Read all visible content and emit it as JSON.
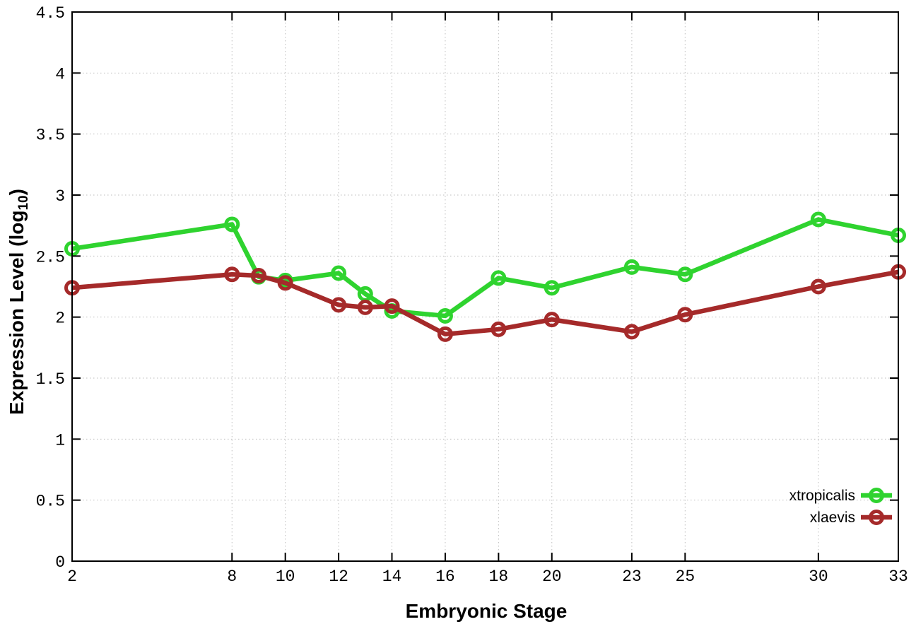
{
  "chart_data": {
    "type": "line",
    "title": "",
    "xlabel": "Embryonic Stage",
    "ylabel": "Expression Level (log10)",
    "ylabel_parts": {
      "main": "Expression Level (log",
      "sub": "10",
      "end": ")"
    },
    "xlim": [
      2,
      33
    ],
    "ylim": [
      0,
      4.5
    ],
    "x_ticks": [
      2,
      8,
      10,
      12,
      14,
      16,
      18,
      20,
      23,
      25,
      30,
      33
    ],
    "x_tick_labels": [
      "2",
      "8",
      "10",
      "12",
      "14",
      "16",
      "18",
      "20",
      "23",
      "25",
      "30",
      "33"
    ],
    "y_ticks": [
      0,
      0.5,
      1,
      1.5,
      2,
      2.5,
      3,
      3.5,
      4,
      4.5
    ],
    "y_tick_labels": [
      "0",
      "0.5",
      "1",
      "1.5",
      "2",
      "2.5",
      "3",
      "3.5",
      "4",
      "4.5"
    ],
    "grid": true,
    "legend_position": "bottom-right",
    "x": [
      2,
      8,
      9,
      10,
      12,
      13,
      14,
      16,
      18,
      20,
      23,
      25,
      30,
      33
    ],
    "series": [
      {
        "name": "xtropicalis",
        "color": "#2fd32f",
        "marker": "open-circle",
        "values": [
          2.56,
          2.76,
          2.33,
          2.3,
          2.36,
          2.19,
          2.05,
          2.01,
          2.32,
          2.24,
          2.41,
          2.35,
          2.8,
          2.67
        ]
      },
      {
        "name": "xlaevis",
        "color": "#a52a2a",
        "marker": "open-circle",
        "values": [
          2.24,
          2.35,
          2.34,
          2.28,
          2.1,
          2.08,
          2.09,
          1.86,
          1.9,
          1.98,
          1.88,
          2.02,
          2.25,
          2.37
        ]
      }
    ],
    "colors": {
      "border": "#000000",
      "grid": "#bdbdbd",
      "background": "#ffffff",
      "text": "#000000"
    }
  }
}
